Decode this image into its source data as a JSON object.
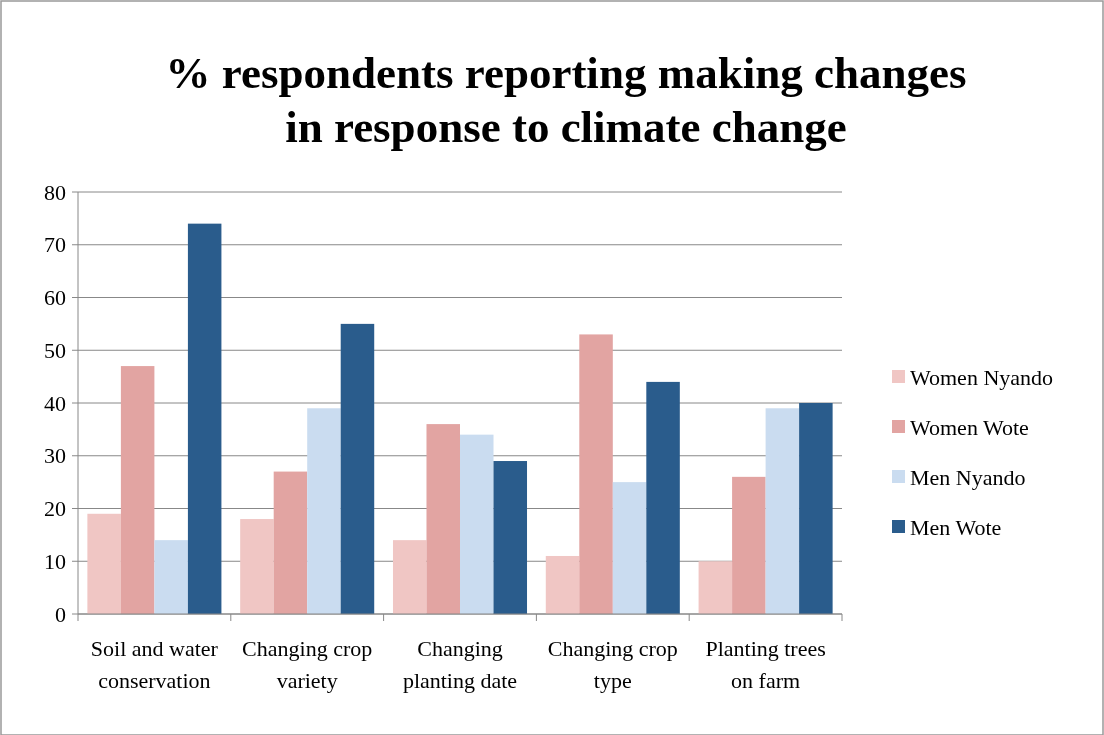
{
  "chart_data": {
    "type": "bar",
    "title": "% respondents reporting making changes in response to climate change",
    "categories": [
      "Soil and water conservation",
      "Changing crop variety",
      "Changing planting date",
      "Changing crop type",
      "Planting trees on farm"
    ],
    "series": [
      {
        "name": "Women Nyando",
        "color": "#f0c6c4",
        "values": [
          19,
          18,
          14,
          11,
          10
        ]
      },
      {
        "name": "Women Wote",
        "color": "#e2a4a2",
        "values": [
          47,
          27,
          36,
          53,
          26
        ]
      },
      {
        "name": "Men Nyando",
        "color": "#cadcf0",
        "values": [
          14,
          39,
          34,
          25,
          39
        ]
      },
      {
        "name": "Men Wote",
        "color": "#2a5c8c",
        "values": [
          74,
          55,
          29,
          44,
          40
        ]
      }
    ],
    "ylim": [
      0,
      80
    ],
    "yticks": [
      0,
      10,
      20,
      30,
      40,
      50,
      60,
      70,
      80
    ],
    "grid": "y",
    "legend": "right"
  }
}
